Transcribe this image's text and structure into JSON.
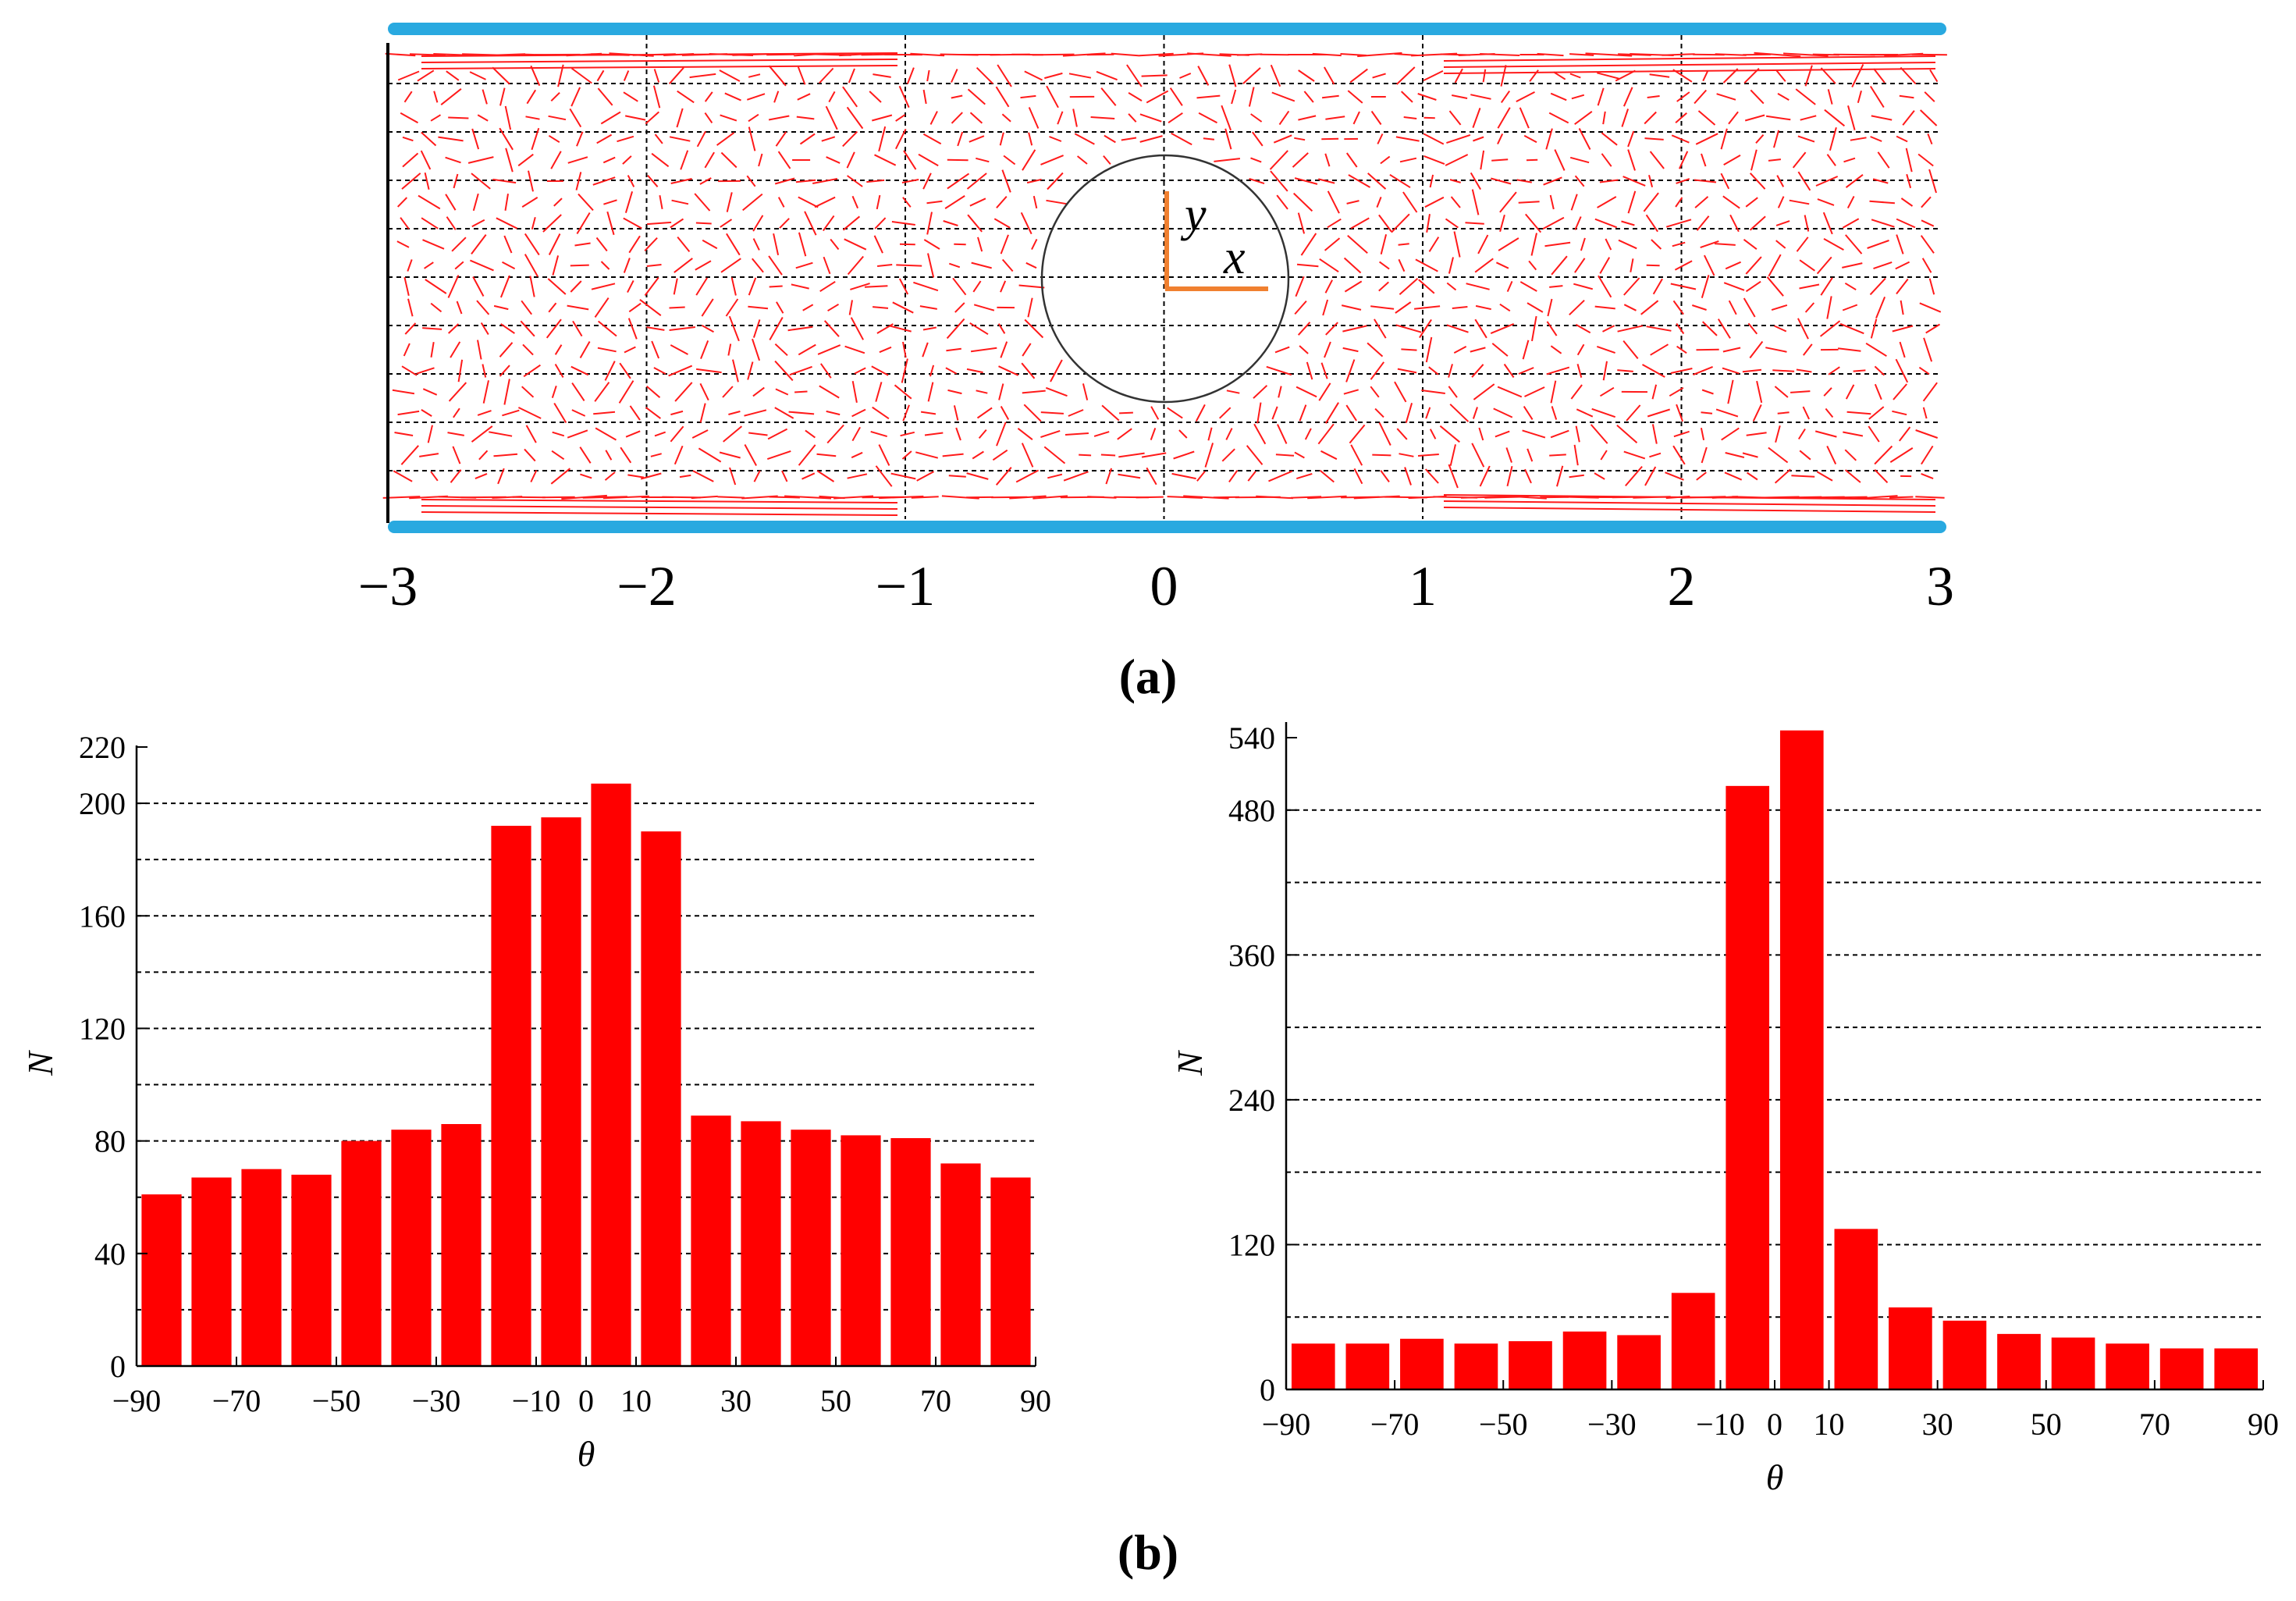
{
  "figure": {
    "panel_a_label": "(a)",
    "panel_b_label": "(b)",
    "colors": {
      "vector": "#ff1a1a",
      "wall": "#29a9e0",
      "axes_marker": "#f08030",
      "bar": "#ff0000"
    }
  },
  "chart_data": [
    {
      "type": "scatter",
      "id": "vector-field",
      "title": "",
      "description_of_marks": "flow direction segments",
      "xlim": [
        -3,
        3
      ],
      "x_ticks": [
        "−3",
        "−2",
        "−1",
        "0",
        "1",
        "2",
        "3"
      ],
      "x_tick_values": [
        -3,
        -2,
        -1,
        0,
        1,
        2,
        3
      ],
      "grid": true,
      "circle": {
        "center_x": 0,
        "center_y": 0,
        "radius": 0.48
      },
      "axis_markers": {
        "x_label": "x",
        "y_label": "y"
      }
    },
    {
      "type": "bar",
      "id": "histogram-left",
      "xlabel": "θ",
      "ylabel": "N",
      "categories": [
        -85,
        -75,
        -65,
        -55,
        -45,
        -35,
        -25,
        -15,
        -5,
        5,
        15,
        25,
        35,
        45,
        55,
        65,
        75,
        85
      ],
      "values": [
        61,
        67,
        70,
        68,
        80,
        84,
        86,
        192,
        195,
        207,
        190,
        89,
        87,
        84,
        82,
        81,
        72,
        67
      ],
      "xlim": [
        -90,
        90
      ],
      "ylim": [
        0,
        215
      ],
      "x_ticks": [
        "−90",
        "−70",
        "−50",
        "−30",
        "−10",
        "0",
        "10",
        "30",
        "50",
        "70",
        "90"
      ],
      "x_tick_values": [
        -90,
        -70,
        -50,
        -30,
        -10,
        0,
        10,
        30,
        50,
        70,
        90
      ],
      "y_ticks": [
        "0",
        "40",
        "80",
        "120",
        "160",
        "200",
        "220"
      ],
      "y_tick_values": [
        0,
        40,
        80,
        120,
        160,
        200,
        220
      ],
      "gridlines": [
        20,
        40,
        60,
        80,
        100,
        120,
        140,
        160,
        180,
        200
      ]
    },
    {
      "type": "bar",
      "id": "histogram-right",
      "xlabel": "θ",
      "ylabel": "N",
      "categories": [
        -85,
        -75,
        -65,
        -55,
        -45,
        -35,
        -25,
        -15,
        -5,
        5,
        15,
        25,
        35,
        45,
        55,
        65,
        75,
        85
      ],
      "values": [
        38,
        38,
        42,
        38,
        40,
        48,
        45,
        80,
        500,
        546,
        133,
        68,
        57,
        46,
        43,
        38,
        34,
        34
      ],
      "xlim": [
        -90,
        90
      ],
      "ylim": [
        0,
        540
      ],
      "x_ticks": [
        "−90",
        "−70",
        "−50",
        "−30",
        "−10",
        "0",
        "10",
        "30",
        "50",
        "70",
        "90"
      ],
      "x_tick_values": [
        -90,
        -70,
        -50,
        -30,
        -10,
        0,
        10,
        30,
        50,
        70,
        90
      ],
      "y_ticks": [
        "0",
        "120",
        "240",
        "360",
        "480",
        "540"
      ],
      "y_tick_values": [
        0,
        120,
        240,
        360,
        480,
        540
      ],
      "gridlines": [
        60,
        120,
        180,
        240,
        300,
        360,
        420,
        480
      ]
    }
  ]
}
